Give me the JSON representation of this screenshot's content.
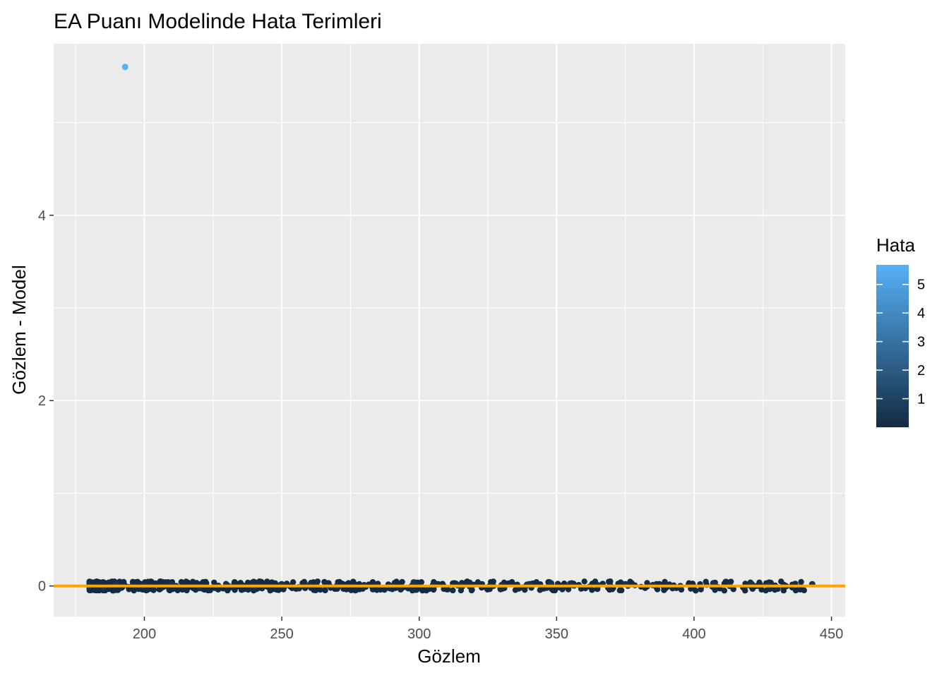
{
  "chart_data": {
    "type": "scatter",
    "title": "EA Puanı Modelinde Hata Terimleri",
    "xlabel": "Gözlem",
    "ylabel": "Gözlem - Model",
    "xlim": [
      167,
      455
    ],
    "ylim": [
      -0.33,
      5.85
    ],
    "x_ticks": [
      200,
      250,
      300,
      350,
      400,
      450
    ],
    "y_ticks": [
      0,
      2,
      4
    ],
    "grid": true,
    "reference_line": {
      "y": 0,
      "color": "#FFA500"
    },
    "color_scale": {
      "title": "Hata",
      "low_color": "#132B43",
      "high_color": "#56B1F7",
      "range": [
        0.0,
        5.6
      ],
      "ticks": [
        1,
        2,
        3,
        4,
        5
      ]
    },
    "legend_position": "right",
    "outlier": {
      "x": 193,
      "y": 5.6,
      "error": 5.6
    },
    "cluster": {
      "x_range": [
        180,
        443
      ],
      "y_range": [
        -0.05,
        0.05
      ],
      "description_points": [
        {
          "x": 180,
          "y": 0.0
        },
        {
          "x": 185,
          "y": -0.02
        },
        {
          "x": 190,
          "y": 0.02
        },
        {
          "x": 200,
          "y": 0.0
        },
        {
          "x": 210,
          "y": 0.02
        },
        {
          "x": 220,
          "y": -0.01
        },
        {
          "x": 230,
          "y": 0.01
        },
        {
          "x": 240,
          "y": 0.0
        },
        {
          "x": 250,
          "y": 0.02
        },
        {
          "x": 260,
          "y": 0.01
        },
        {
          "x": 270,
          "y": 0.0
        },
        {
          "x": 280,
          "y": 0.01
        },
        {
          "x": 290,
          "y": 0.0
        },
        {
          "x": 298,
          "y": 0.04
        },
        {
          "x": 305,
          "y": 0.01
        },
        {
          "x": 315,
          "y": 0.0
        },
        {
          "x": 330,
          "y": 0.01
        },
        {
          "x": 340,
          "y": 0.02
        },
        {
          "x": 348,
          "y": 0.03
        },
        {
          "x": 355,
          "y": 0.02
        },
        {
          "x": 365,
          "y": 0.0
        },
        {
          "x": 375,
          "y": 0.02
        },
        {
          "x": 385,
          "y": 0.01
        },
        {
          "x": 395,
          "y": 0.0
        },
        {
          "x": 407,
          "y": 0.03
        },
        {
          "x": 413,
          "y": 0.0
        },
        {
          "x": 421,
          "y": 0.02
        },
        {
          "x": 427,
          "y": 0.01
        },
        {
          "x": 443,
          "y": 0.02
        }
      ]
    }
  }
}
